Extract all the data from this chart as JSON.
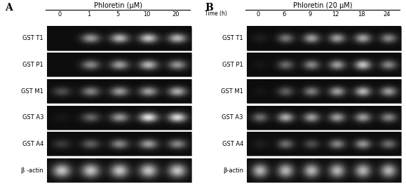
{
  "fig_width": 5.79,
  "fig_height": 2.64,
  "bg_color": "#ffffff",
  "panel_A": {
    "label": "A",
    "title": "Phloretin (μM)",
    "col_labels": [
      "0",
      "1",
      "5",
      "10",
      "20"
    ],
    "row_labels": [
      "GST T1",
      "GST P1",
      "GST M1",
      "GST A3",
      "GST A4",
      "β -actin"
    ],
    "bands": {
      "GST T1": [
        0.0,
        0.6,
        0.72,
        0.78,
        0.72
      ],
      "GST P1": [
        0.0,
        0.52,
        0.62,
        0.72,
        0.58
      ],
      "GST M1": [
        0.28,
        0.5,
        0.6,
        0.62,
        0.68
      ],
      "GST A3": [
        0.05,
        0.38,
        0.6,
        0.92,
        0.88
      ],
      "GST A4": [
        0.2,
        0.35,
        0.52,
        0.62,
        0.52
      ],
      "β -actin": [
        0.78,
        0.78,
        0.78,
        0.78,
        0.78
      ]
    }
  },
  "panel_B": {
    "label": "B",
    "title": "Phloretin (20 μM)",
    "time_label": "Time (h)",
    "col_labels": [
      "0",
      "6",
      "9",
      "12",
      "18",
      "24"
    ],
    "row_labels": [
      "GST T1",
      "GST P1",
      "GST M1",
      "GST A3",
      "GST A4",
      "β-actin"
    ],
    "bands": {
      "GST T1": [
        0.08,
        0.45,
        0.62,
        0.62,
        0.65,
        0.52
      ],
      "GST P1": [
        0.04,
        0.4,
        0.52,
        0.62,
        0.78,
        0.52
      ],
      "GST M1": [
        0.04,
        0.35,
        0.48,
        0.62,
        0.72,
        0.62
      ],
      "GST A3": [
        0.42,
        0.68,
        0.62,
        0.62,
        0.62,
        0.52
      ],
      "GST A4": [
        0.08,
        0.42,
        0.28,
        0.52,
        0.58,
        0.42
      ],
      "β-actin": [
        0.72,
        0.72,
        0.72,
        0.72,
        0.72,
        0.72
      ]
    }
  }
}
